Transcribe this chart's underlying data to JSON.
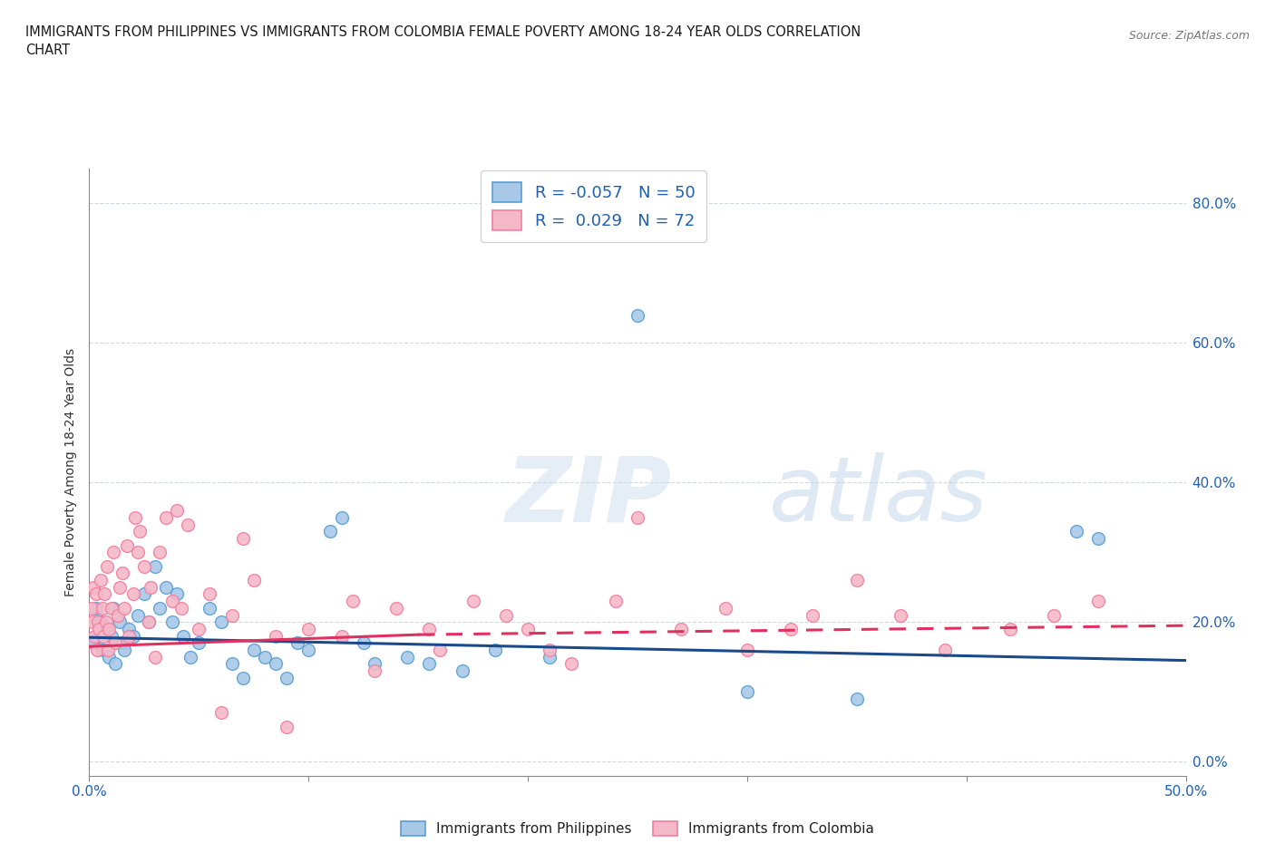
{
  "title": "IMMIGRANTS FROM PHILIPPINES VS IMMIGRANTS FROM COLOMBIA FEMALE POVERTY AMONG 18-24 YEAR OLDS CORRELATION\nCHART",
  "source": "Source: ZipAtlas.com",
  "ylabel": "Female Poverty Among 18-24 Year Olds",
  "ytick_labels": [
    "0.0%",
    "20.0%",
    "40.0%",
    "60.0%",
    "80.0%"
  ],
  "ytick_values": [
    0,
    20,
    40,
    60,
    80
  ],
  "xlim": [
    0,
    50
  ],
  "ylim": [
    -2,
    85
  ],
  "watermark_zip": "ZIP",
  "watermark_atlas": "atlas",
  "blue_scatter_face": "#a8c8e8",
  "blue_scatter_edge": "#5a9fd4",
  "pink_scatter_face": "#f5b8c8",
  "pink_scatter_edge": "#f080a0",
  "line_blue": "#1a4a8a",
  "line_pink": "#e03060",
  "blue_line_y0": 17.8,
  "blue_line_y50": 14.5,
  "pink_line_y0": 16.5,
  "pink_line_y15": 18.2,
  "pink_dashed_y15": 18.2,
  "pink_dashed_y50": 19.5,
  "philippines_x": [
    0.2,
    0.3,
    0.4,
    0.5,
    0.6,
    0.8,
    0.9,
    1.0,
    1.1,
    1.2,
    1.4,
    1.5,
    1.6,
    1.8,
    2.0,
    2.2,
    2.5,
    2.7,
    3.0,
    3.2,
    3.5,
    3.8,
    4.0,
    4.3,
    4.6,
    5.0,
    5.5,
    6.0,
    6.5,
    7.0,
    7.5,
    8.0,
    8.5,
    9.0,
    9.5,
    10.0,
    11.0,
    11.5,
    12.5,
    13.0,
    14.5,
    15.5,
    17.0,
    18.5,
    21.0,
    25.0,
    30.0,
    35.0,
    45.0,
    46.0
  ],
  "philippines_y": [
    17,
    22,
    18,
    20,
    16,
    19,
    15,
    18,
    22,
    14,
    20,
    17,
    16,
    19,
    18,
    21,
    24,
    20,
    28,
    22,
    25,
    20,
    24,
    18,
    15,
    17,
    22,
    20,
    14,
    12,
    16,
    15,
    14,
    12,
    17,
    16,
    33,
    35,
    17,
    14,
    15,
    14,
    13,
    16,
    15,
    64,
    10,
    9,
    33,
    32
  ],
  "colombia_x": [
    0.1,
    0.15,
    0.2,
    0.25,
    0.3,
    0.35,
    0.4,
    0.45,
    0.5,
    0.6,
    0.65,
    0.7,
    0.75,
    0.8,
    0.85,
    0.9,
    1.0,
    1.1,
    1.2,
    1.3,
    1.4,
    1.5,
    1.6,
    1.7,
    1.8,
    2.0,
    2.1,
    2.2,
    2.3,
    2.5,
    2.7,
    2.8,
    3.0,
    3.2,
    3.5,
    3.8,
    4.0,
    4.2,
    4.5,
    5.0,
    5.5,
    6.0,
    6.5,
    7.0,
    7.5,
    8.5,
    9.0,
    10.0,
    11.5,
    12.0,
    13.0,
    14.0,
    15.5,
    16.0,
    17.5,
    19.0,
    20.0,
    21.0,
    22.0,
    24.0,
    25.0,
    27.0,
    29.0,
    30.0,
    32.0,
    33.0,
    35.0,
    37.0,
    39.0,
    42.0,
    44.0,
    46.0
  ],
  "colombia_y": [
    22,
    20,
    25,
    18,
    24,
    16,
    20,
    19,
    26,
    22,
    18,
    24,
    20,
    28,
    16,
    19,
    22,
    30,
    17,
    21,
    25,
    27,
    22,
    31,
    18,
    24,
    35,
    30,
    33,
    28,
    20,
    25,
    15,
    30,
    35,
    23,
    36,
    22,
    34,
    19,
    24,
    7,
    21,
    32,
    26,
    18,
    5,
    19,
    18,
    23,
    13,
    22,
    19,
    16,
    23,
    21,
    19,
    16,
    14,
    23,
    35,
    19,
    22,
    16,
    19,
    21,
    26,
    21,
    16,
    19,
    21,
    23
  ]
}
